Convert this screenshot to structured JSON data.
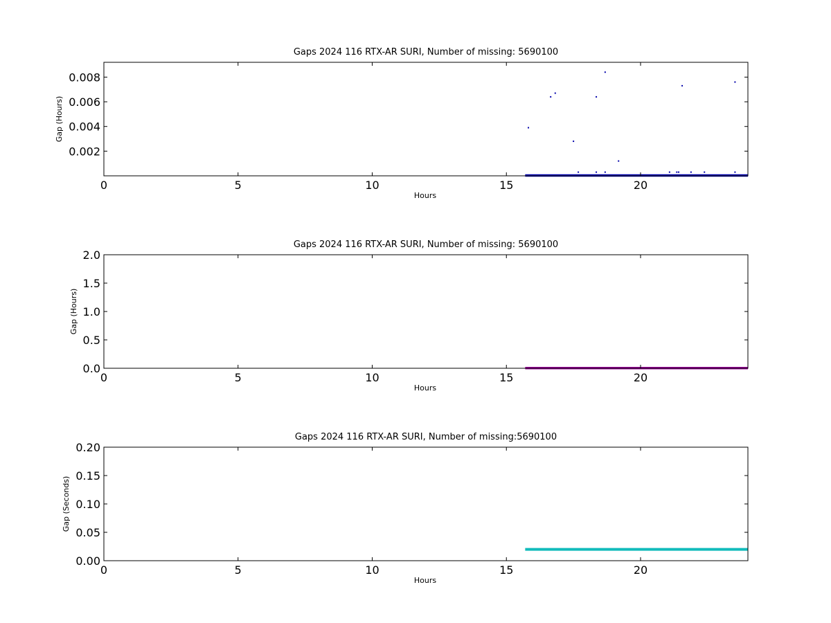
{
  "chart_data": [
    {
      "type": "scatter",
      "title": "Gaps 2024 116 RTX-AR  SURI, Number of missing: 5690100",
      "xlabel": "Hours",
      "ylabel": "Gap (Hours)",
      "xlim": [
        0,
        24
      ],
      "ylim": [
        0,
        0.0092
      ],
      "xticks": [
        0,
        5,
        10,
        15,
        20
      ],
      "xtick_labels": [
        "0",
        "5",
        "10",
        "15",
        "20"
      ],
      "yticks": [
        0.002,
        0.004,
        0.006,
        0.008
      ],
      "ytick_labels": [
        "0.002",
        "0.004",
        "0.006",
        "0.008"
      ],
      "grid": false,
      "color": "#0000aa",
      "baseline": {
        "x_start": 15.7,
        "x_end": 24,
        "y": 3e-05
      },
      "points": [
        {
          "x": 15.82,
          "y": 0.0039
        },
        {
          "x": 16.65,
          "y": 0.0064
        },
        {
          "x": 16.82,
          "y": 0.0067
        },
        {
          "x": 17.5,
          "y": 0.0028
        },
        {
          "x": 17.68,
          "y": 0.0003
        },
        {
          "x": 18.35,
          "y": 0.0064
        },
        {
          "x": 18.35,
          "y": 0.0003
        },
        {
          "x": 18.68,
          "y": 0.0084
        },
        {
          "x": 18.68,
          "y": 0.0003
        },
        {
          "x": 19.18,
          "y": 0.0012
        },
        {
          "x": 21.08,
          "y": 0.0003
        },
        {
          "x": 21.35,
          "y": 0.0003
        },
        {
          "x": 21.42,
          "y": 0.0003
        },
        {
          "x": 21.55,
          "y": 0.0073
        },
        {
          "x": 21.88,
          "y": 0.0003
        },
        {
          "x": 22.38,
          "y": 0.0003
        },
        {
          "x": 23.52,
          "y": 0.0076
        },
        {
          "x": 23.52,
          "y": 0.0003
        }
      ]
    },
    {
      "type": "line",
      "title": "Gaps 2024 116 RTX-AR  SURI, Number of missing: 5690100",
      "xlabel": "Hours",
      "ylabel": "Gap (Hours)",
      "xlim": [
        0,
        24
      ],
      "ylim": [
        0,
        2.0
      ],
      "xticks": [
        0,
        5,
        10,
        15,
        20
      ],
      "xtick_labels": [
        "0",
        "5",
        "10",
        "15",
        "20"
      ],
      "yticks": [
        0.0,
        0.5,
        1.0,
        1.5,
        2.0
      ],
      "ytick_labels": [
        "0.0",
        "0.5",
        "1.0",
        "1.5",
        "2.0"
      ],
      "grid": false,
      "color": "#990099",
      "baseline": {
        "x_start": 15.7,
        "x_end": 24,
        "y": 0.003
      },
      "points": []
    },
    {
      "type": "line",
      "title": "Gaps 2024 116 RTX-AR  SURI, Number of missing:5690100",
      "xlabel": "Hours",
      "ylabel": "Gap (Seconds)",
      "xlim": [
        0,
        24
      ],
      "ylim": [
        0,
        0.2
      ],
      "xticks": [
        0,
        5,
        10,
        15,
        20
      ],
      "xtick_labels": [
        "0",
        "5",
        "10",
        "15",
        "20"
      ],
      "yticks": [
        0.0,
        0.05,
        0.1,
        0.15,
        0.2
      ],
      "ytick_labels": [
        "0.00",
        "0.05",
        "0.10",
        "0.15",
        "0.20"
      ],
      "grid": false,
      "color": "#11bbbb",
      "baseline": {
        "x_start": 15.7,
        "x_end": 24,
        "y": 0.02
      },
      "points": []
    }
  ]
}
